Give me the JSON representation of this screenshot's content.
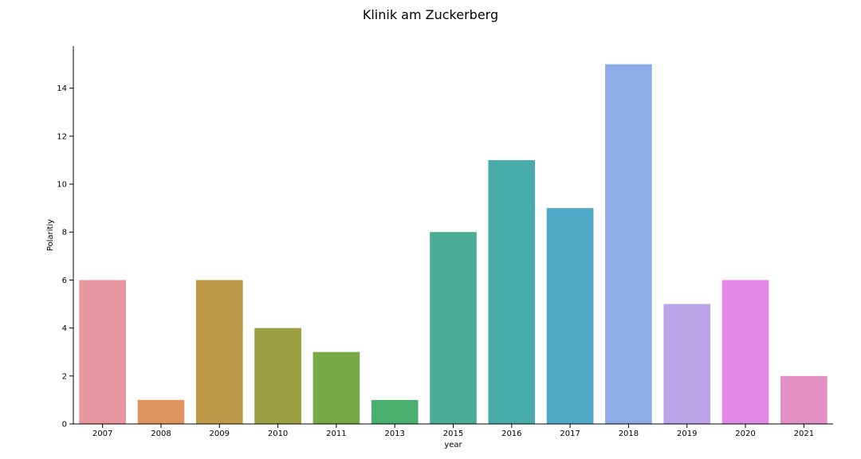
{
  "chart_data": {
    "type": "bar",
    "title": "Klinik am Zuckerberg",
    "xlabel": "year",
    "ylabel": "Polaritiy",
    "categories": [
      "2007",
      "2008",
      "2009",
      "2010",
      "2011",
      "2013",
      "2015",
      "2016",
      "2017",
      "2018",
      "2019",
      "2020",
      "2021"
    ],
    "values": [
      6,
      1,
      6,
      4,
      3,
      1,
      8,
      11,
      9,
      15,
      5,
      6,
      2
    ],
    "colors": [
      "#e8969f",
      "#e0935e",
      "#bc9a4a",
      "#9c9f44",
      "#77a947",
      "#4aae6e",
      "#49ad97",
      "#4aabab",
      "#4fa8c6",
      "#8eadE6",
      "#bba3e8",
      "#e388e4",
      "#e291c3"
    ],
    "yticks": [
      0,
      2,
      4,
      6,
      8,
      10,
      12,
      14
    ],
    "ylim": [
      0,
      15.75
    ],
    "grid": false,
    "legend": "none"
  }
}
